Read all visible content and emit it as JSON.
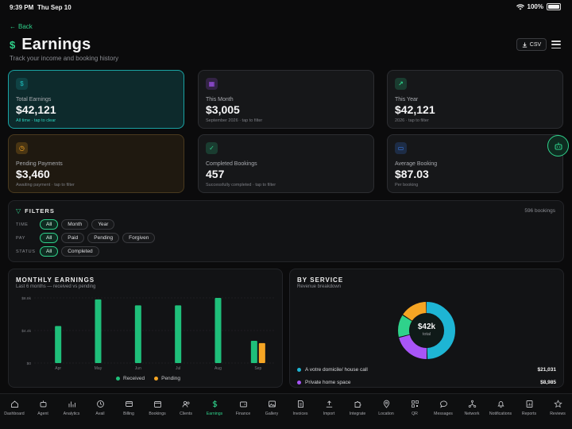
{
  "status_bar": {
    "time": "9:39 PM",
    "date": "Thu Sep 10",
    "battery": "100%"
  },
  "header": {
    "back_label": "Back",
    "title": "Earnings",
    "subtitle": "Track your income and booking history",
    "csv_label": "CSV"
  },
  "stats": [
    {
      "label": "Total Earnings",
      "value": "$42,121",
      "hint": "All time · tap to clear",
      "icon": "dollar-icon",
      "color": "#1aa3a3"
    },
    {
      "label": "This Month",
      "value": "$3,005",
      "hint": "September 2026 · tap to filter",
      "icon": "calendar-icon",
      "color": "#a855f7"
    },
    {
      "label": "This Year",
      "value": "$42,121",
      "hint": "2026 · tap to filter",
      "icon": "trend-up-icon",
      "color": "#2fd28b"
    },
    {
      "label": "Pending Payments",
      "value": "$3,460",
      "hint": "Awaiting payment · tap to filter",
      "icon": "clock-icon",
      "color": "#f5a524"
    },
    {
      "label": "Completed Bookings",
      "value": "457",
      "hint": "Successfully completed · tap to filter",
      "icon": "check-circle-icon",
      "color": "#2fd28b"
    },
    {
      "label": "Average Booking",
      "value": "$87.03",
      "hint": "Per booking",
      "icon": "card-icon",
      "color": "#3b82f6"
    }
  ],
  "filters": {
    "title": "FILTERS",
    "count": "596 bookings",
    "rows": [
      {
        "label": "TIME",
        "chips": [
          "All",
          "Month",
          "Year"
        ],
        "selected": 0
      },
      {
        "label": "PAY",
        "chips": [
          "All",
          "Paid",
          "Pending",
          "Forgiven"
        ],
        "selected": 0
      },
      {
        "label": "STATUS",
        "chips": [
          "All",
          "Completed"
        ],
        "selected": 0
      }
    ]
  },
  "monthly": {
    "title": "MONTHLY EARNINGS",
    "subtitle": "Last 6 months — received vs pending"
  },
  "chart_data": {
    "type": "bar",
    "categories": [
      "Apr",
      "May",
      "Jun",
      "Jul",
      "Aug",
      "Sep"
    ],
    "y_ticks": [
      "$0",
      "$4.4k",
      "$8.8k"
    ],
    "ylim": [
      0,
      8800
    ],
    "series": [
      {
        "name": "Received",
        "color": "#1fbf7a",
        "values": [
          5000,
          8600,
          7800,
          7800,
          8800,
          3000
        ]
      },
      {
        "name": "Pending",
        "color": "#f5a524",
        "values": [
          0,
          0,
          0,
          0,
          0,
          2700
        ]
      }
    ],
    "grid": true,
    "legend": "bottom"
  },
  "services": {
    "title": "BY SERVICE",
    "subtitle": "Revenue breakdown",
    "total": "$42k",
    "total_label": "total",
    "slices": [
      {
        "name": "A votre domicile/ house call",
        "amount": "$21,031",
        "value": 21031,
        "color": "#1eb5d4"
      },
      {
        "name": "Private home space",
        "amount": "$8,985",
        "value": 8985,
        "color": "#a855f7"
      },
      {
        "name": "",
        "amount": "",
        "value": 5500,
        "color": "#2fd28b"
      },
      {
        "name": "",
        "amount": "",
        "value": 6600,
        "color": "#f5a524"
      }
    ]
  },
  "tabs": [
    {
      "label": "Dashboard",
      "icon": "home-icon"
    },
    {
      "label": "Agent",
      "icon": "robot-icon"
    },
    {
      "label": "Analytics",
      "icon": "bar-chart-icon"
    },
    {
      "label": "Avail",
      "icon": "clock-icon"
    },
    {
      "label": "Billing",
      "icon": "credit-card-icon"
    },
    {
      "label": "Bookings",
      "icon": "calendar-icon"
    },
    {
      "label": "Clients",
      "icon": "users-icon"
    },
    {
      "label": "Earnings",
      "icon": "dollar-icon"
    },
    {
      "label": "Finance",
      "icon": "wallet-icon"
    },
    {
      "label": "Gallery",
      "icon": "image-icon"
    },
    {
      "label": "Invoices",
      "icon": "file-icon"
    },
    {
      "label": "Import",
      "icon": "upload-icon"
    },
    {
      "label": "Integrate",
      "icon": "puzzle-icon"
    },
    {
      "label": "Location",
      "icon": "pin-icon"
    },
    {
      "label": "QR",
      "icon": "qr-icon"
    },
    {
      "label": "Messages",
      "icon": "chat-icon"
    },
    {
      "label": "Network",
      "icon": "network-icon"
    },
    {
      "label": "Notifications",
      "icon": "bell-icon"
    },
    {
      "label": "Reports",
      "icon": "report-icon"
    },
    {
      "label": "Reviews",
      "icon": "star-icon"
    }
  ],
  "active_tab": 7
}
